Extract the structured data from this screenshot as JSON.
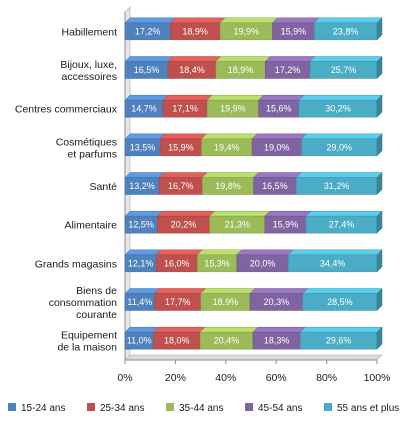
{
  "chart_data": {
    "type": "bar",
    "orientation": "horizontal",
    "stacked": "percent",
    "categories": [
      "Habillement",
      "Bijoux, luxe, accessoires",
      "Centres commerciaux",
      "Cosmétiques et parfums",
      "Santé",
      "Alimentaire",
      "Grands magasins",
      "Biens de consommation courante",
      "Equipement de la maison"
    ],
    "category_lines": [
      [
        "Habillement"
      ],
      [
        "Bijoux, luxe,",
        "accessoires"
      ],
      [
        "Centres commerciaux"
      ],
      [
        "Cosmétiques",
        "et parfums"
      ],
      [
        "Santé"
      ],
      [
        "Alimentaire"
      ],
      [
        "Grands magasins"
      ],
      [
        "Biens de",
        "consommation",
        "courante"
      ],
      [
        "Equipement",
        "de la maison"
      ]
    ],
    "series": [
      {
        "name": "15-24 ans",
        "color": "#4f81bd",
        "values": [
          17.2,
          16.5,
          14.7,
          13.5,
          13.2,
          12.5,
          12.1,
          11.4,
          11.0
        ],
        "labels": [
          "17,2%",
          "16,5%",
          "14,7%",
          "13,5%",
          "13,2%",
          "12,5%",
          "12,1%",
          "11,4%",
          "11,0%"
        ]
      },
      {
        "name": "25-34 ans",
        "color": "#c0504d",
        "values": [
          18.9,
          18.4,
          17.1,
          15.9,
          16.7,
          20.2,
          16.0,
          17.7,
          18.0
        ],
        "labels": [
          "18,9%",
          "18,4%",
          "17,1%",
          "15,9%",
          "16,7%",
          "20,2%",
          "16,0%",
          "17,7%",
          "18,0%"
        ]
      },
      {
        "name": "35-44 ans",
        "color": "#9bbb59",
        "values": [
          19.9,
          18.9,
          19.9,
          19.4,
          19.8,
          21.3,
          15.3,
          18.9,
          20.4
        ],
        "labels": [
          "19,9%",
          "18,9%",
          "19,9%",
          "19,4%",
          "19,8%",
          "21,3%",
          "15,3%",
          "18,9%",
          "20,4%"
        ]
      },
      {
        "name": "45-54 ans",
        "color": "#8064a2",
        "values": [
          15.9,
          17.2,
          15.6,
          19.0,
          16.5,
          15.9,
          20.0,
          20.3,
          18.3
        ],
        "labels": [
          "15,9%",
          "17,2%",
          "15,6%",
          "19,0%",
          "16,5%",
          "15,9%",
          "20,0%",
          "20,3%",
          "18,3%"
        ]
      },
      {
        "name": "55 ans et plus",
        "color": "#4bacc6",
        "values": [
          23.8,
          25.7,
          30.2,
          29.0,
          31.2,
          27.4,
          34.4,
          28.5,
          29.6
        ],
        "labels": [
          "23,8%",
          "25,7%",
          "30,2%",
          "29,0%",
          "31,2%",
          "27,4%",
          "34,4%",
          "28,5%",
          "29,6%"
        ]
      }
    ],
    "x_ticks": [
      "0%",
      "20%",
      "40%",
      "60%",
      "80%",
      "100%"
    ],
    "xlim": [
      0,
      100
    ],
    "grid": false,
    "legend_position": "bottom",
    "title": "",
    "xlabel": "",
    "ylabel": ""
  }
}
